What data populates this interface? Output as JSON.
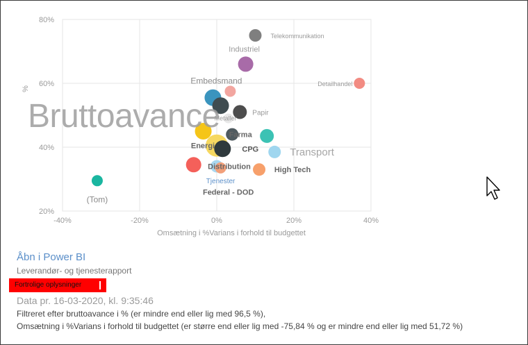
{
  "chart_data": {
    "type": "scatter",
    "title": "Bruttoavance",
    "xlabel": "Omsætning i %Varians i forhold til budgettet",
    "ylabel": "%",
    "xlim": [
      -40,
      40
    ],
    "ylim": [
      20,
      80
    ],
    "x_ticks": [
      "-40%",
      "-20%",
      "0%",
      "20%",
      "40%"
    ],
    "y_ticks": [
      "20%",
      "40%",
      "60%",
      "80%"
    ],
    "grid": true,
    "points": [
      {
        "label": "Telekommunikation",
        "x": 10,
        "y": 75,
        "color": "#7f7f7f",
        "r": 9
      },
      {
        "label": "Industriel",
        "x": 7.5,
        "y": 66,
        "color": "#a86ba8",
        "r": 11
      },
      {
        "label": "Detailhandel",
        "x": 37,
        "y": 60,
        "color": "#f28b82",
        "r": 8
      },
      {
        "label": "Embedsmand",
        "x": -1,
        "y": 55.5,
        "color": "#3a94be",
        "r": 12
      },
      {
        "label": "",
        "x": 1,
        "y": 53,
        "color": "#3f4c50",
        "r": 12
      },
      {
        "label": "",
        "x": 3.5,
        "y": 57.5,
        "color": "#f2a6a0",
        "r": 8
      },
      {
        "label": "Papir",
        "x": 6,
        "y": 51,
        "color": "#4d4d4d",
        "r": 10
      },
      {
        "label": "Metaller",
        "x": 3,
        "y": 49,
        "color": "#e8e8e8",
        "r": 7
      },
      {
        "label": "",
        "x": -3.5,
        "y": 45,
        "color": "#f5c518",
        "r": 12
      },
      {
        "label": "Farma",
        "x": 4,
        "y": 44,
        "color": "#4f5a5f",
        "r": 9
      },
      {
        "label": "",
        "x": 13,
        "y": 43.5,
        "color": "#3cc2b4",
        "r": 10
      },
      {
        "label": "Energi",
        "x": 0,
        "y": 40.5,
        "color": "#f6d860",
        "r": 16
      },
      {
        "label": "CPG",
        "x": 1.5,
        "y": 39.5,
        "color": "#2f3a3d",
        "r": 12
      },
      {
        "label": "Transport",
        "x": 15,
        "y": 38.5,
        "color": "#9fd6ef",
        "r": 9
      },
      {
        "label": "Distribution",
        "x": 0,
        "y": 34,
        "color": "#a9d7ef",
        "r": 9
      },
      {
        "label": "Tjenester",
        "x": 1,
        "y": 33.5,
        "color": "#f2a07a",
        "r": 8
      },
      {
        "label": "",
        "x": -6,
        "y": 34.5,
        "color": "#f4605a",
        "r": 11
      },
      {
        "label": "High Tech",
        "x": 11,
        "y": 33,
        "color": "#f7a06b",
        "r": 9
      },
      {
        "label": "(Tom)",
        "x": -31,
        "y": 29.5,
        "color": "#1ab6a0",
        "r": 8
      },
      {
        "label": "Federal - DOD",
        "x": 3,
        "y": 26,
        "color": "#ffffff",
        "r": 1
      }
    ]
  },
  "footer": {
    "open_link": "Åbn i Power BI",
    "report_name": "Leverandør- og tjenesterapport",
    "confidential": "Fortrolige oplysninger",
    "data_date": "Data pr. 16-03-2020, kl. 9:35:46",
    "filter_1": "Filtreret efter bruttoavance i %        (er mindre end eller lig med 96,5 %),",
    "filter_2": "Omsætning i %Varians i forhold til budgettet (er større end eller lig med -75,84 % og er mindre end eller lig med 51,72 %)"
  }
}
